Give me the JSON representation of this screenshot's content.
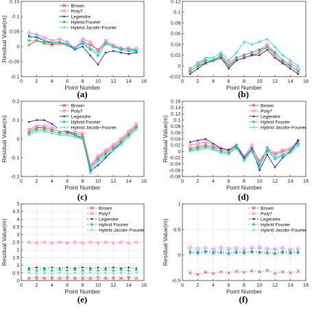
{
  "chart_data": [
    {
      "type": "line",
      "panel": "(a)",
      "xlabel": "Point Number",
      "ylabel": "Residual Value(m)",
      "xlim": [
        0,
        16
      ],
      "ylim": [
        -0.1,
        0.15
      ],
      "xticks": [
        0,
        2,
        4,
        6,
        8,
        10,
        12,
        14,
        16
      ],
      "yticks": [
        -0.1,
        -0.05,
        0,
        0.05,
        0.1,
        0.15
      ],
      "ytick_labels": [
        "-0.1",
        "-0.05",
        "0",
        "0.05",
        "0.1",
        "0.15"
      ],
      "legend_position": "top-center",
      "x": [
        1,
        2,
        3,
        4,
        5,
        6,
        7,
        8,
        9,
        10,
        11,
        12,
        13,
        14,
        15
      ],
      "series": [
        {
          "name": "Brown",
          "color": "#e8453c",
          "marker": "x",
          "values": [
            0.005,
            0.02,
            0.01,
            0.005,
            0.01,
            0.005,
            -0.005,
            0.015,
            0.005,
            -0.01,
            0.01,
            0.0,
            -0.01,
            -0.005,
            -0.015
          ]
        },
        {
          "name": "Poly7",
          "color": "#ff66cc",
          "marker": "o",
          "values": [
            0.045,
            0.04,
            0.03,
            0.02,
            0.025,
            0.015,
            -0.005,
            0.025,
            0.015,
            -0.015,
            0.02,
            0.005,
            -0.005,
            -0.01,
            -0.005
          ]
        },
        {
          "name": "Legendre",
          "color": "#1a1ab3",
          "marker": ".",
          "values": [
            0.035,
            0.03,
            0.02,
            0.01,
            0.015,
            0.005,
            -0.01,
            0.0,
            -0.03,
            -0.06,
            -0.02,
            -0.015,
            -0.02,
            -0.025,
            -0.02
          ]
        },
        {
          "name": "Hybrid Fourier",
          "color": "#22c55e",
          "marker": "*",
          "values": [
            0.02,
            0.02,
            0.015,
            0.01,
            0.015,
            0.005,
            -0.005,
            0.01,
            -0.01,
            -0.03,
            0.01,
            0.0,
            -0.01,
            -0.015,
            -0.015
          ]
        },
        {
          "name": "Hybrid Jacobi−Fourier",
          "color": "#22d3ee",
          "marker": "+",
          "values": [
            0.03,
            0.035,
            0.02,
            0.015,
            0.015,
            0.01,
            -0.005,
            0.015,
            -0.005,
            -0.02,
            0.015,
            0.0,
            -0.005,
            -0.01,
            -0.01
          ]
        }
      ]
    },
    {
      "type": "line",
      "panel": "(b)",
      "xlabel": "Point Number",
      "ylabel": "",
      "xlim": [
        0,
        16
      ],
      "ylim": [
        -0.02,
        0.12
      ],
      "xticks": [
        0,
        2,
        4,
        6,
        8,
        10,
        12,
        14,
        16
      ],
      "yticks": [
        -0.02,
        0,
        0.02,
        0.04,
        0.06,
        0.08,
        0.1,
        0.12
      ],
      "ytick_labels": [
        "-0.02",
        "0",
        "0.02",
        "0.04",
        "0.06",
        "0.08",
        "0.1",
        "0.12"
      ],
      "legend_position": "none",
      "x": [
        1,
        2,
        3,
        4,
        5,
        6,
        7,
        8,
        9,
        10,
        11,
        12,
        13,
        14,
        15
      ],
      "series": [
        {
          "name": "Brown",
          "color": "#e8453c",
          "marker": "x",
          "values": [
            -0.01,
            0.0,
            0.005,
            0.01,
            0.015,
            0.0,
            0.01,
            0.015,
            0.02,
            0.025,
            0.035,
            0.02,
            0.005,
            0.0,
            -0.01
          ]
        },
        {
          "name": "Poly7",
          "color": "#ff66cc",
          "marker": "o",
          "values": [
            -0.005,
            0.005,
            0.01,
            0.01,
            0.02,
            0.005,
            0.015,
            0.02,
            0.025,
            0.03,
            0.04,
            0.025,
            0.01,
            0.005,
            -0.005
          ]
        },
        {
          "name": "Legendre",
          "color": "#1a1ab3",
          "marker": ".",
          "values": [
            -0.015,
            -0.005,
            0.005,
            0.01,
            0.015,
            -0.005,
            0.01,
            0.015,
            0.02,
            0.02,
            0.03,
            0.015,
            0.005,
            -0.005,
            -0.015
          ]
        },
        {
          "name": "Hybrid Fourier",
          "color": "#22c55e",
          "marker": "*",
          "values": [
            -0.01,
            0.0,
            0.01,
            0.01,
            0.02,
            0.0,
            0.015,
            0.02,
            0.025,
            0.03,
            0.035,
            0.025,
            0.01,
            0.0,
            -0.01
          ]
        },
        {
          "name": "Hybrid Jacobi−Fourier",
          "color": "#22d3ee",
          "marker": "+",
          "values": [
            -0.005,
            0.005,
            0.015,
            0.015,
            0.025,
            0.01,
            0.025,
            0.045,
            0.04,
            0.045,
            0.05,
            0.035,
            0.02,
            0.01,
            0.0
          ]
        }
      ]
    },
    {
      "type": "line",
      "panel": "(c)",
      "xlabel": "Point Number",
      "ylabel": "Residual Value(m)",
      "xlim": [
        0,
        16
      ],
      "ylim": [
        -0.2,
        0.2
      ],
      "xticks": [
        0,
        2,
        4,
        6,
        8,
        10,
        12,
        14,
        16
      ],
      "yticks": [
        -0.2,
        -0.1,
        0,
        0.1,
        0.2
      ],
      "ytick_labels": [
        "-0.2",
        "-0.1",
        "0",
        "0.1",
        "0.2"
      ],
      "legend_position": "top-center",
      "x": [
        1,
        2,
        3,
        4,
        5,
        6,
        7,
        8,
        9,
        10,
        11,
        12,
        13,
        14,
        15
      ],
      "series": [
        {
          "name": "Brown",
          "color": "#e8453c",
          "marker": "x",
          "values": [
            0.04,
            0.06,
            0.06,
            0.05,
            0.04,
            0.04,
            0.03,
            0.02,
            -0.15,
            -0.1,
            -0.07,
            -0.04,
            -0.01,
            0.03,
            0.07
          ]
        },
        {
          "name": "Poly7",
          "color": "#ff66cc",
          "marker": "o",
          "values": [
            0.05,
            0.07,
            0.07,
            0.06,
            0.05,
            0.05,
            0.04,
            0.03,
            -0.14,
            -0.09,
            -0.06,
            -0.03,
            0.0,
            0.04,
            0.08
          ]
        },
        {
          "name": "Legendre",
          "color": "#1a1ab3",
          "marker": ".",
          "values": [
            0.09,
            0.1,
            0.1,
            0.08,
            0.05,
            0.04,
            0.02,
            0.0,
            -0.17,
            -0.14,
            -0.1,
            -0.06,
            -0.02,
            0.02,
            0.06
          ]
        },
        {
          "name": "Hybrid Fourier",
          "color": "#22c55e",
          "marker": "*",
          "values": [
            0.03,
            0.05,
            0.05,
            0.04,
            0.03,
            0.03,
            0.02,
            0.01,
            -0.16,
            -0.11,
            -0.08,
            -0.05,
            -0.02,
            0.02,
            0.06
          ]
        },
        {
          "name": "Hybrid Jacobi−Fourier",
          "color": "#22d3ee",
          "marker": "+",
          "values": [
            0.02,
            0.04,
            0.04,
            0.03,
            0.02,
            0.02,
            0.01,
            0.0,
            -0.18,
            -0.12,
            -0.09,
            -0.06,
            -0.03,
            0.01,
            0.05
          ]
        }
      ]
    },
    {
      "type": "line",
      "panel": "(d)",
      "xlabel": "Point Number",
      "ylabel": "Residual Value(m)",
      "xlim": [
        0,
        16
      ],
      "ylim": [
        -0.08,
        0.16
      ],
      "xticks": [
        0,
        2,
        4,
        6,
        8,
        10,
        12,
        14,
        16
      ],
      "yticks": [
        -0.08,
        -0.06,
        -0.04,
        -0.02,
        0,
        0.02,
        0.04,
        0.06,
        0.08,
        0.1,
        0.12,
        0.14,
        0.16
      ],
      "ytick_labels": [
        "-0.08",
        "-0.06",
        "-0.04",
        "-0.02",
        "0",
        "0.02",
        "0.04",
        "0.06",
        "0.08",
        "0.1",
        "0.12",
        "0.14",
        "0.16"
      ],
      "legend_position": "top-right",
      "x": [
        1,
        2,
        3,
        4,
        5,
        6,
        7,
        8,
        9,
        10,
        11,
        12,
        13,
        14,
        15
      ],
      "series": [
        {
          "name": "Brown",
          "color": "#e8453c",
          "marker": "x",
          "values": [
            0.01,
            0.015,
            0.02,
            0.015,
            0.005,
            0.0,
            0.015,
            -0.02,
            0.01,
            -0.03,
            0.005,
            -0.01,
            0.0,
            0.005,
            0.03
          ]
        },
        {
          "name": "Poly7",
          "color": "#ff66cc",
          "marker": "o",
          "values": [
            0.02,
            0.025,
            0.03,
            0.02,
            0.01,
            0.005,
            0.02,
            -0.015,
            0.02,
            -0.04,
            0.01,
            -0.005,
            0.005,
            0.01,
            0.035
          ]
        },
        {
          "name": "Legendre",
          "color": "#1a1ab3",
          "marker": ".",
          "values": [
            0.03,
            0.035,
            0.04,
            0.025,
            0.01,
            0.005,
            0.02,
            -0.02,
            0.01,
            -0.06,
            -0.01,
            -0.05,
            -0.02,
            0.0,
            0.035
          ]
        },
        {
          "name": "Hybrid Fourier",
          "color": "#22c55e",
          "marker": "*",
          "values": [
            0.005,
            0.01,
            0.015,
            0.01,
            0.0,
            -0.005,
            0.01,
            -0.025,
            0.005,
            -0.045,
            0.0,
            -0.02,
            -0.01,
            0.0,
            0.025
          ]
        },
        {
          "name": "Hybrid Jacobi−Fourier",
          "color": "#22d3ee",
          "marker": "+",
          "values": [
            0.0,
            0.005,
            0.01,
            0.005,
            -0.005,
            -0.01,
            0.02,
            -0.03,
            0.0,
            -0.05,
            0.015,
            -0.025,
            -0.015,
            -0.005,
            0.02
          ]
        }
      ]
    },
    {
      "type": "scatter",
      "panel": "(e)",
      "xlabel": "Point Number",
      "ylabel": "Residual Value(m)",
      "xlim": [
        0,
        16
      ],
      "ylim": [
        0,
        5
      ],
      "xticks": [
        0,
        2,
        4,
        6,
        8,
        10,
        12,
        14,
        16
      ],
      "yticks": [
        0,
        0.5,
        1,
        1.5,
        2,
        2.5,
        3,
        3.5,
        4,
        4.5,
        5
      ],
      "ytick_labels": [
        "0",
        "0.5",
        "1",
        "1.5",
        "2",
        "2.5",
        "3",
        "3.5",
        "4",
        "4.5",
        "5"
      ],
      "grid": true,
      "legend_position": "top-right",
      "x": [
        1,
        2,
        3,
        4,
        5,
        6,
        7,
        8,
        9,
        10,
        11,
        12,
        13,
        14,
        15
      ],
      "series": [
        {
          "name": "Brown",
          "color": "#e8453c",
          "marker": "x",
          "values": [
            0.15,
            0.2,
            0.15,
            0.18,
            0.15,
            0.2,
            0.15,
            0.18,
            0.15,
            0.2,
            0.15,
            0.18,
            0.15,
            0.2,
            0.15
          ]
        },
        {
          "name": "Poly7",
          "color": "#ff66cc",
          "marker": "o",
          "values": [
            2.5,
            2.45,
            2.5,
            2.45,
            2.5,
            2.45,
            2.5,
            2.45,
            2.5,
            2.45,
            2.5,
            2.45,
            2.5,
            2.45,
            2.5
          ]
        },
        {
          "name": "Legendre",
          "color": "#1a1ab3",
          "marker": ".",
          "values": [
            0.8,
            0.85,
            0.8,
            0.85,
            0.8,
            0.85,
            0.8,
            0.85,
            0.8,
            0.85,
            0.8,
            0.85,
            0.8,
            0.85,
            0.8
          ]
        },
        {
          "name": "Hybrid Fourier",
          "color": "#22c55e",
          "marker": "*",
          "values": [
            0.7,
            0.65,
            0.7,
            0.65,
            0.7,
            0.65,
            0.7,
            0.65,
            0.7,
            0.65,
            0.7,
            0.65,
            0.7,
            0.65,
            0.7
          ]
        },
        {
          "name": "Hybrid Jacobi−Fourier",
          "color": "#22d3ee",
          "marker": "+",
          "values": [
            0.5,
            0.45,
            0.5,
            0.45,
            0.5,
            0.45,
            0.5,
            0.45,
            0.5,
            0.45,
            0.5,
            0.45,
            0.5,
            0.45,
            0.5
          ]
        }
      ]
    },
    {
      "type": "scatter",
      "panel": "(f)",
      "xlabel": "Point Number",
      "ylabel": "Residual Value(m)",
      "xlim": [
        0,
        16
      ],
      "ylim": [
        -0.5,
        1
      ],
      "xticks": [
        0,
        2,
        4,
        6,
        8,
        10,
        12,
        14,
        16
      ],
      "yticks": [
        -0.5,
        0,
        0.5,
        1
      ],
      "ytick_labels": [
        "-0.5",
        "0",
        "0.5",
        "1"
      ],
      "grid": true,
      "legend_position": "top-right",
      "x": [
        1,
        2,
        3,
        4,
        5,
        6,
        7,
        8,
        9,
        10,
        11,
        12,
        13,
        14,
        15
      ],
      "series": [
        {
          "name": "Brown",
          "color": "#e8453c",
          "marker": "x",
          "values": [
            -0.35,
            -0.38,
            -0.34,
            -0.36,
            -0.33,
            -0.35,
            -0.32,
            -0.34,
            -0.31,
            -0.33,
            -0.3,
            -0.36,
            -0.33,
            -0.35,
            -0.32
          ]
        },
        {
          "name": "Poly7",
          "color": "#ff66cc",
          "marker": "o",
          "values": [
            0.15,
            0.13,
            0.14,
            0.12,
            0.15,
            0.13,
            0.14,
            0.12,
            0.15,
            0.16,
            0.13,
            0.12,
            0.14,
            0.11,
            0.13
          ]
        },
        {
          "name": "Legendre",
          "color": "#1a1ab3",
          "marker": ".",
          "values": [
            0.06,
            0.05,
            0.07,
            0.05,
            0.06,
            0.04,
            0.06,
            0.05,
            0.07,
            0.06,
            0.05,
            0.04,
            0.06,
            0.05,
            0.06
          ]
        },
        {
          "name": "Hybrid Fourier",
          "color": "#22c55e",
          "marker": "*",
          "values": [
            0.04,
            0.03,
            0.05,
            0.03,
            0.04,
            0.02,
            0.04,
            0.03,
            0.05,
            0.04,
            0.03,
            0.02,
            0.04,
            0.03,
            0.04
          ]
        },
        {
          "name": "Hybrid Jacobi−Fourier",
          "color": "#22d3ee",
          "marker": "+",
          "values": [
            0.1,
            0.08,
            0.09,
            0.08,
            0.1,
            0.09,
            0.1,
            0.08,
            0.12,
            0.13,
            0.09,
            0.1,
            0.09,
            0.08,
            0.1
          ]
        }
      ]
    }
  ]
}
